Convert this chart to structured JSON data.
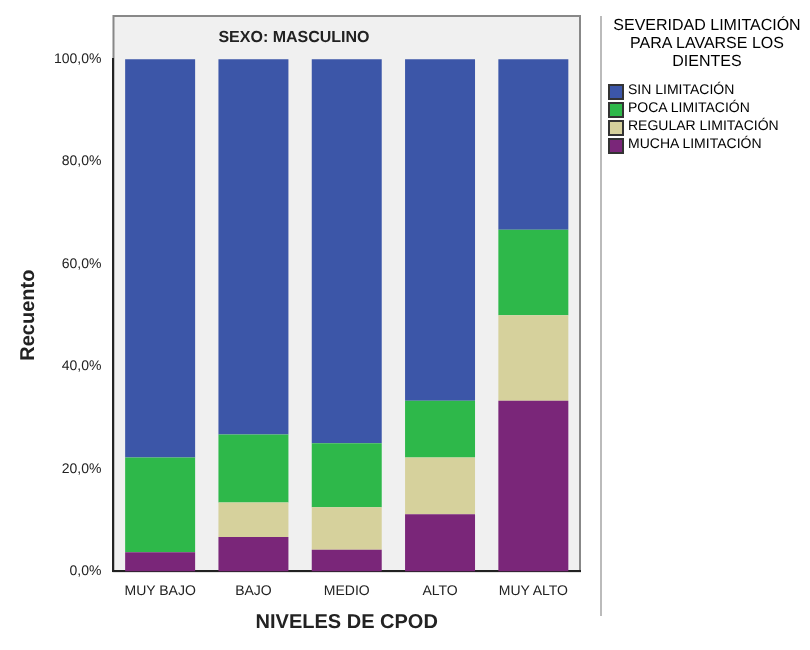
{
  "chart_data": {
    "type": "bar",
    "stacked": true,
    "title": "SEXO: MASCULINO",
    "xlabel": "NIVELES DE CPOD",
    "ylabel": "Recuento",
    "legend_title": "SEVERIDAD LIMITACIÓN PARA LAVARSE LOS DIENTES",
    "legend": "right",
    "grid": false,
    "categories": [
      "MUY BAJO",
      "BAJO",
      "MEDIO",
      "ALTO",
      "MUY ALTO"
    ],
    "ylim": [
      0,
      100
    ],
    "yticks": [
      {
        "value": 0,
        "label": "0,0%"
      },
      {
        "value": 20,
        "label": "20,0%"
      },
      {
        "value": 40,
        "label": "40,0%"
      },
      {
        "value": 60,
        "label": "60,0%"
      },
      {
        "value": 80,
        "label": "80,0%"
      },
      {
        "value": 100,
        "label": "100,0%"
      }
    ],
    "series": [
      {
        "name": "MUCHA LIMITACIÓN",
        "color": "#7a2679",
        "values": [
          3.7,
          6.7,
          4.2,
          11.1,
          33.3
        ]
      },
      {
        "name": "REGULAR LIMITACIÓN",
        "color": "#d6d19c",
        "values": [
          0,
          6.7,
          8.3,
          11.1,
          16.7
        ]
      },
      {
        "name": "POCA LIMITACIÓN",
        "color": "#2eb84a",
        "values": [
          18.5,
          13.3,
          12.5,
          11.1,
          16.7
        ]
      },
      {
        "name": "SIN LIMITACIÓN",
        "color": "#3c56a8",
        "values": [
          77.8,
          73.3,
          75,
          66.7,
          33.3
        ]
      }
    ]
  }
}
